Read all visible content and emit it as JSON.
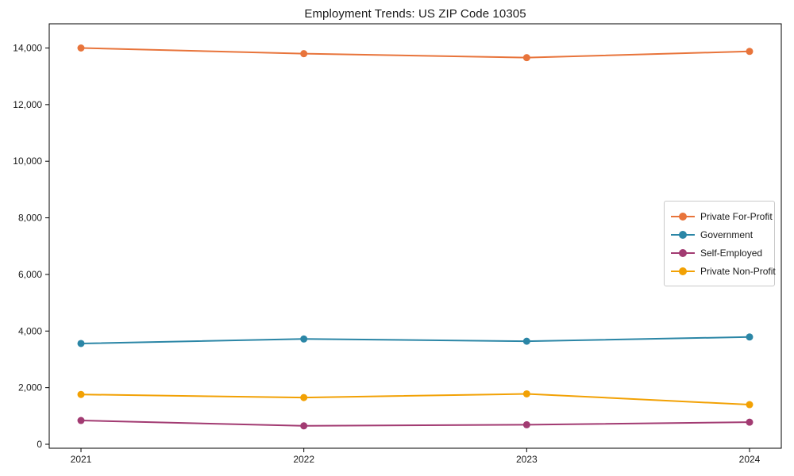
{
  "chart_data": {
    "type": "line",
    "title": "Employment Trends: US ZIP Code 10305",
    "xlabel": "",
    "ylabel": "",
    "x": [
      2021,
      2022,
      2023,
      2024
    ],
    "x_tick_labels": [
      "2021",
      "2022",
      "2023",
      "2024"
    ],
    "y_ticks": [
      0,
      2000,
      4000,
      6000,
      8000,
      10000,
      12000,
      14000
    ],
    "y_tick_labels": [
      "0",
      "2,000",
      "4,000",
      "6,000",
      "8,000",
      "10,000",
      "12,000",
      "14,000"
    ],
    "ylim": [
      0,
      14000
    ],
    "grid": false,
    "legend_position": "center right",
    "series": [
      {
        "name": "Private For-Profit",
        "color": "#E8743B",
        "values": [
          14000,
          13800,
          13660,
          13880
        ]
      },
      {
        "name": "Government",
        "color": "#2B86A6",
        "values": [
          3560,
          3720,
          3640,
          3790
        ]
      },
      {
        "name": "Self-Employed",
        "color": "#A23B72",
        "values": [
          840,
          650,
          690,
          780
        ]
      },
      {
        "name": "Private Non-Profit",
        "color": "#F2A104",
        "values": [
          1760,
          1650,
          1780,
          1400
        ]
      }
    ]
  }
}
